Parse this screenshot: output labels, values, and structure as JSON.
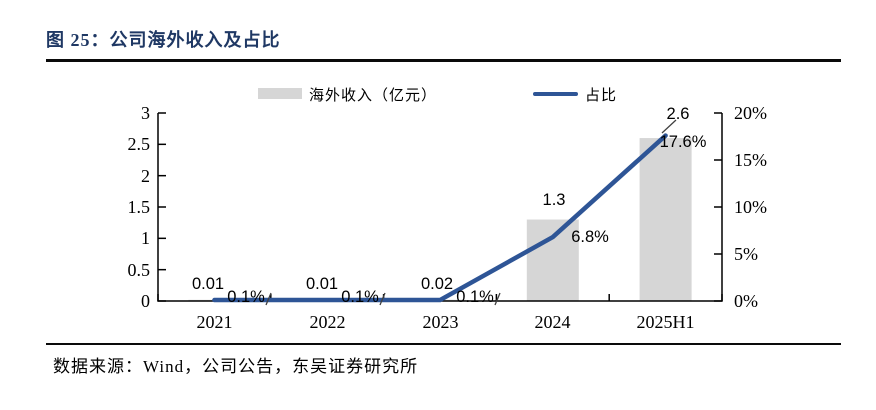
{
  "figure": {
    "title": "图 25：公司海外收入及占比",
    "source_note": "数据来源：Wind，公司公告，东吴证券研究所"
  },
  "colors": {
    "title_navy": "#1f3864",
    "line_blue": "#2e5596",
    "bar_gray": "#d6d6d6",
    "axis_black": "#000000"
  },
  "chart_data": {
    "type": "bar+line combo, dual axis",
    "categories": [
      "2021",
      "2022",
      "2023",
      "2024",
      "2025H1"
    ],
    "series": [
      {
        "name": "海外收入（亿元）",
        "type": "bar",
        "axis": "left",
        "values": [
          0.01,
          0.01,
          0.02,
          1.3,
          2.6
        ],
        "labels": [
          "0.01",
          "0.01",
          "0.02",
          "1.3",
          "2.6"
        ],
        "color": "#d6d6d6"
      },
      {
        "name": "占比",
        "type": "line",
        "axis": "right",
        "unit": "%",
        "values": [
          0.1,
          0.1,
          0.1,
          6.8,
          17.6
        ],
        "labels": [
          "0.1%",
          "0.1%",
          "0.1%",
          "6.8%",
          "17.6%"
        ],
        "color": "#2e5596"
      }
    ],
    "left_axis": {
      "min": 0,
      "max": 3,
      "ticks": [
        "3",
        "2.5",
        "2",
        "1.5",
        "1",
        "0.5",
        "0"
      ]
    },
    "right_axis": {
      "min": 0,
      "max": 20,
      "ticks": [
        "20%",
        "15%",
        "10%",
        "5%",
        "0%"
      ]
    },
    "legend": {
      "position": "top",
      "items": [
        {
          "label": "海外收入（亿元）",
          "swatch": "bar"
        },
        {
          "label": "占比",
          "swatch": "line"
        }
      ]
    },
    "grid": false
  }
}
